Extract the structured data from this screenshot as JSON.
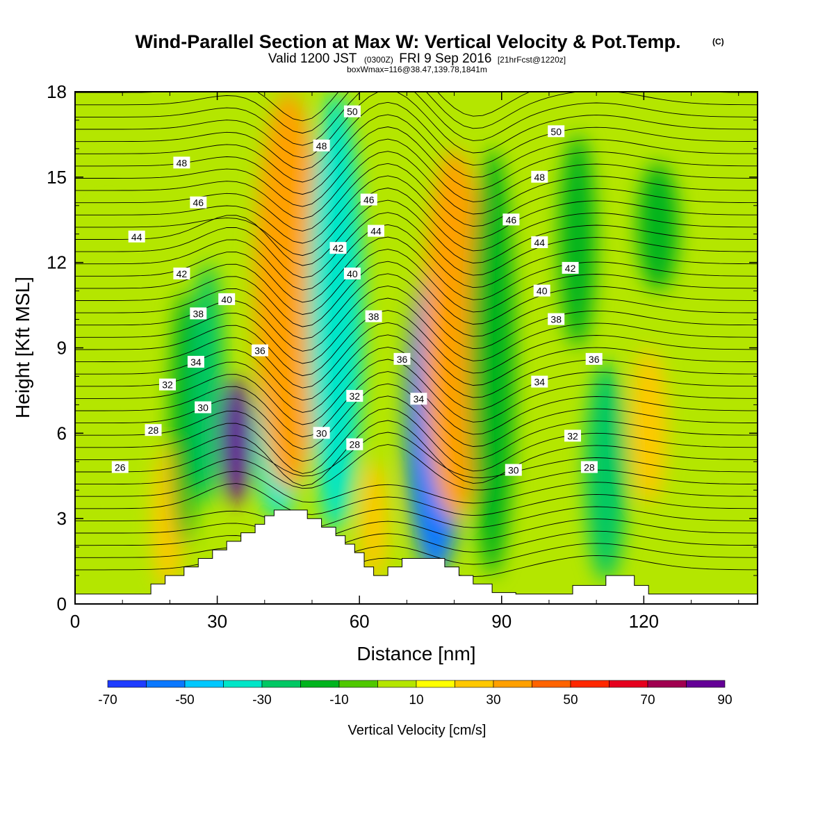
{
  "title": {
    "main": "Wind-Parallel Section at Max W: Vertical Velocity & Pot.Temp.",
    "mark": "(C)",
    "sub_a": "Valid 1200 JST",
    "sub_b": "(0300Z)",
    "sub_c": "FRI 9 Sep 2016",
    "sub_d": "[21hrFcst@1220z]",
    "sub_line3": "boxWmax=116@38.47,139.78,1841m"
  },
  "chart_data": {
    "type": "heatmap",
    "xlabel": "Distance [nm]",
    "ylabel": "Height [Kft MSL]",
    "xlim": [
      0,
      144
    ],
    "ylim": [
      0,
      18
    ],
    "x_ticks": [
      "0",
      "30",
      "60",
      "90",
      "120"
    ],
    "y_ticks": [
      "0",
      "3",
      "6",
      "9",
      "12",
      "15",
      "18"
    ],
    "colorbar": {
      "title": "Vertical Velocity [cm/s]",
      "tick_labels": [
        "-70",
        "-50",
        "-30",
        "-10",
        "10",
        "30",
        "50",
        "70",
        "90"
      ],
      "colors": [
        "#1e3cff",
        "#0a78ff",
        "#00c8ff",
        "#00e6c8",
        "#00c864",
        "#00b41e",
        "#50c800",
        "#b4e600",
        "#ffff00",
        "#ffc800",
        "#ffa000",
        "#ff6400",
        "#ff2800",
        "#e6001e",
        "#a00050",
        "#640096"
      ]
    },
    "field_bands": [
      {
        "band": "W6",
        "x": 3.5,
        "ybot": 0.0,
        "ytop": 9.0,
        "w": 1.2,
        "color_index": 7
      },
      {
        "band": "W6",
        "x": 7.0,
        "ybot": 0.5,
        "ytop": 14.0,
        "w": 2.0,
        "color_index": 7
      },
      {
        "band": "W30",
        "x": 19.5,
        "ybot": 0.5,
        "ytop": 5.5,
        "w": 1.3,
        "color_index": 9
      },
      {
        "band": "W-5",
        "x": 23.0,
        "ybot": 2.0,
        "ytop": 11.0,
        "w": 1.2,
        "color_index": 5
      },
      {
        "band": "W-15",
        "x": 28.0,
        "ybot": 3.5,
        "ytop": 12.0,
        "w": 1.4,
        "color_index": 4
      },
      {
        "band": "W90",
        "x": 34.0,
        "ybot": 3.5,
        "ytop": 8.0,
        "w": 1.4,
        "color_index": 15
      },
      {
        "band": "W-30",
        "x": 43.0,
        "ybot": 3.0,
        "ytop": 9.0,
        "w": 2.2,
        "color_index": 3
      },
      {
        "band": "W30",
        "x": 45.0,
        "ybot": 4.0,
        "ytop": 18.0,
        "w": 3.0,
        "color_index": 10
      },
      {
        "band": "W-20",
        "x": 55.0,
        "ybot": 2.5,
        "ytop": 18.0,
        "w": 2.4,
        "color_index": 3
      },
      {
        "band": "W25",
        "x": 63.0,
        "ybot": 0.8,
        "ytop": 5.0,
        "w": 1.2,
        "color_index": 9
      },
      {
        "band": "W-60",
        "x": 76.0,
        "ybot": 1.0,
        "ytop": 12.0,
        "w": 2.6,
        "color_index": 1
      },
      {
        "band": "W30",
        "x": 80.0,
        "ybot": 3.0,
        "ytop": 16.0,
        "w": 2.8,
        "color_index": 10
      },
      {
        "band": "W-10",
        "x": 88.0,
        "ybot": 1.0,
        "ytop": 16.0,
        "w": 2.0,
        "color_index": 5
      },
      {
        "band": "W-15",
        "x": 106.0,
        "ybot": 9.0,
        "ytop": 16.5,
        "w": 1.6,
        "color_index": 5
      },
      {
        "band": "W-15",
        "x": 112.0,
        "ybot": 0.8,
        "ytop": 8.5,
        "w": 1.8,
        "color_index": 4
      },
      {
        "band": "W20",
        "x": 121.0,
        "ybot": 3.5,
        "ytop": 9.0,
        "w": 1.6,
        "color_index": 9
      },
      {
        "band": "W-15",
        "x": 123.0,
        "ybot": 11.0,
        "ytop": 15.5,
        "w": 1.8,
        "color_index": 5
      }
    ],
    "contour_labels": [
      {
        "text": "26",
        "x": 9.5,
        "y": 4.8
      },
      {
        "text": "28",
        "x": 16.5,
        "y": 6.1
      },
      {
        "text": "30",
        "x": 27.0,
        "y": 6.9
      },
      {
        "text": "32",
        "x": 19.5,
        "y": 7.7
      },
      {
        "text": "34",
        "x": 25.5,
        "y": 8.5
      },
      {
        "text": "36",
        "x": 39.0,
        "y": 8.9
      },
      {
        "text": "38",
        "x": 26.0,
        "y": 10.2
      },
      {
        "text": "40",
        "x": 32.0,
        "y": 10.7
      },
      {
        "text": "42",
        "x": 22.5,
        "y": 11.6
      },
      {
        "text": "44",
        "x": 13.0,
        "y": 12.9
      },
      {
        "text": "46",
        "x": 26.0,
        "y": 14.1
      },
      {
        "text": "48",
        "x": 22.5,
        "y": 15.5
      },
      {
        "text": "48",
        "x": 52.0,
        "y": 16.1
      },
      {
        "text": "50",
        "x": 58.5,
        "y": 17.3
      },
      {
        "text": "46",
        "x": 62.0,
        "y": 14.2
      },
      {
        "text": "44",
        "x": 63.5,
        "y": 13.1
      },
      {
        "text": "42",
        "x": 55.5,
        "y": 12.5
      },
      {
        "text": "40",
        "x": 58.5,
        "y": 11.6
      },
      {
        "text": "38",
        "x": 63.0,
        "y": 10.1
      },
      {
        "text": "36",
        "x": 69.0,
        "y": 8.6
      },
      {
        "text": "34",
        "x": 72.5,
        "y": 7.2
      },
      {
        "text": "32",
        "x": 59.0,
        "y": 7.3
      },
      {
        "text": "30",
        "x": 52.0,
        "y": 6.0
      },
      {
        "text": "28",
        "x": 59.0,
        "y": 5.6
      },
      {
        "text": "50",
        "x": 101.5,
        "y": 16.6
      },
      {
        "text": "48",
        "x": 98.0,
        "y": 15.0
      },
      {
        "text": "46",
        "x": 92.0,
        "y": 13.5
      },
      {
        "text": "44",
        "x": 98.0,
        "y": 12.7
      },
      {
        "text": "42",
        "x": 104.5,
        "y": 11.8
      },
      {
        "text": "40",
        "x": 98.5,
        "y": 11.0
      },
      {
        "text": "38",
        "x": 101.5,
        "y": 10.0
      },
      {
        "text": "36",
        "x": 109.5,
        "y": 8.6
      },
      {
        "text": "34",
        "x": 98.0,
        "y": 7.8
      },
      {
        "text": "32",
        "x": 105.0,
        "y": 5.9
      },
      {
        "text": "30",
        "x": 92.5,
        "y": 4.7
      },
      {
        "text": "28",
        "x": 108.5,
        "y": 4.8
      }
    ],
    "terrain": [
      [
        0,
        0.35
      ],
      [
        16,
        0.35
      ],
      [
        16,
        0.7
      ],
      [
        19,
        0.7
      ],
      [
        19,
        1.0
      ],
      [
        23,
        1.0
      ],
      [
        23,
        1.3
      ],
      [
        26,
        1.3
      ],
      [
        26,
        1.6
      ],
      [
        29,
        1.6
      ],
      [
        29,
        1.9
      ],
      [
        32,
        1.9
      ],
      [
        32,
        2.2
      ],
      [
        35,
        2.2
      ],
      [
        35,
        2.5
      ],
      [
        38,
        2.5
      ],
      [
        38,
        2.8
      ],
      [
        40,
        2.8
      ],
      [
        40,
        3.1
      ],
      [
        42,
        3.1
      ],
      [
        42,
        3.3
      ],
      [
        49,
        3.3
      ],
      [
        49,
        3.0
      ],
      [
        52,
        3.0
      ],
      [
        52,
        2.7
      ],
      [
        55,
        2.7
      ],
      [
        55,
        2.4
      ],
      [
        57,
        2.4
      ],
      [
        57,
        2.1
      ],
      [
        59,
        2.1
      ],
      [
        59,
        1.8
      ],
      [
        61,
        1.8
      ],
      [
        61,
        1.3
      ],
      [
        63,
        1.3
      ],
      [
        63,
        1.0
      ],
      [
        66,
        1.0
      ],
      [
        66,
        1.3
      ],
      [
        69,
        1.3
      ],
      [
        69,
        1.6
      ],
      [
        78,
        1.6
      ],
      [
        78,
        1.3
      ],
      [
        81,
        1.3
      ],
      [
        81,
        1.0
      ],
      [
        84,
        1.0
      ],
      [
        84,
        0.7
      ],
      [
        88,
        0.7
      ],
      [
        88,
        0.4
      ],
      [
        93,
        0.4
      ],
      [
        93,
        0.35
      ],
      [
        105,
        0.35
      ],
      [
        105,
        0.65
      ],
      [
        112,
        0.65
      ],
      [
        112,
        1.0
      ],
      [
        118,
        1.0
      ],
      [
        118,
        0.65
      ],
      [
        121,
        0.65
      ],
      [
        121,
        0.35
      ],
      [
        144,
        0.35
      ],
      [
        144,
        0
      ],
      [
        0,
        0
      ]
    ]
  }
}
